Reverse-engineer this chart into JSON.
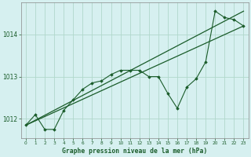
{
  "title": "Graphe pression niveau de la mer (hPa)",
  "background_color": "#d6f0f0",
  "grid_color": "#b0d8cc",
  "line_color": "#1a5c2a",
  "xlim": [
    -0.5,
    23.5
  ],
  "ylim": [
    1011.55,
    1014.75
  ],
  "yticks": [
    1012,
    1013,
    1014
  ],
  "xticks": [
    0,
    1,
    2,
    3,
    4,
    5,
    6,
    7,
    8,
    9,
    10,
    11,
    12,
    13,
    14,
    15,
    16,
    17,
    18,
    19,
    20,
    21,
    22,
    23
  ],
  "line_upper": {
    "x": [
      0,
      23
    ],
    "y": [
      1011.85,
      1014.55
    ]
  },
  "line_lower": {
    "x": [
      0,
      23
    ],
    "y": [
      1011.85,
      1014.2
    ]
  },
  "series_jagged": {
    "x": [
      0,
      1,
      2,
      3,
      4,
      5,
      6,
      7,
      8,
      9,
      10,
      11,
      12,
      13,
      14,
      15,
      16,
      17,
      18,
      19,
      20,
      21,
      22,
      23
    ],
    "y": [
      1011.85,
      1012.1,
      1011.75,
      1011.75,
      1012.2,
      1012.45,
      1012.7,
      1012.85,
      1012.9,
      1013.05,
      1013.15,
      1013.15,
      1013.15,
      1013.0,
      1013.0,
      1012.6,
      1012.25,
      1012.75,
      1012.95,
      1013.35,
      1014.55,
      1014.4,
      1014.35,
      1014.2
    ]
  }
}
